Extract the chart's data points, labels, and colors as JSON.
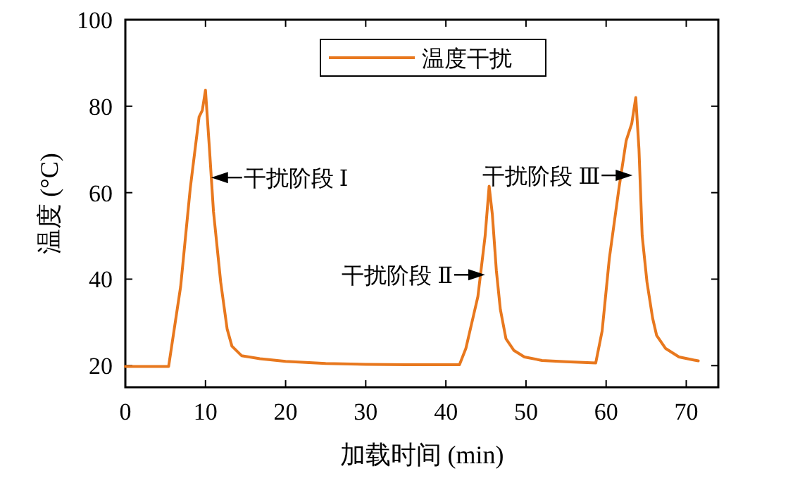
{
  "chart_data": {
    "type": "line",
    "xlabel": "加载时间 (min)",
    "ylabel": "温度 (°C)",
    "xlim": [
      0,
      74
    ],
    "ylim": [
      15,
      100
    ],
    "xticks": [
      0,
      10,
      20,
      30,
      40,
      50,
      60,
      70
    ],
    "yticks": [
      20,
      40,
      60,
      80,
      100
    ],
    "grid": false,
    "legend": "top",
    "marker": "none",
    "line_style": "solid",
    "x": [
      0,
      5.4,
      6.9,
      8.1,
      9.2,
      9.6,
      10.0,
      10.5,
      11.0,
      11.9,
      12.7,
      13.3,
      14.5,
      16.8,
      20,
      25,
      30,
      35,
      41.7,
      42.5,
      43.5,
      44.0,
      44.9,
      45.4,
      45.8,
      46.3,
      46.8,
      47.5,
      48.5,
      49.8,
      52,
      55,
      58.7,
      59.5,
      60.4,
      61.6,
      62.5,
      63.2,
      63.7,
      64.1,
      64.5,
      65.1,
      65.8,
      66.3,
      67.4,
      69.1,
      70.9,
      71.5
    ],
    "series": [
      {
        "name": "温度干扰",
        "color": "#e8781e",
        "values": [
          19.8,
          19.8,
          38.3,
          61,
          77.5,
          79,
          83.7,
          70,
          55.6,
          39.3,
          28.5,
          24.5,
          22.3,
          21.6,
          21,
          20.5,
          20.3,
          20.2,
          20.2,
          24,
          32,
          36,
          50,
          61.5,
          55,
          42,
          33,
          26.2,
          23.5,
          22,
          21.2,
          20.9,
          20.6,
          28,
          44.8,
          61,
          72,
          76,
          82,
          70,
          50,
          39.3,
          31,
          27,
          24,
          22,
          21.3,
          21.1
        ]
      }
    ],
    "annotations": [
      {
        "text": "干扰阶段 Ⅰ",
        "x": 10.7,
        "y": 63.5
      },
      {
        "text": "干扰阶段 Ⅱ",
        "x": 44.9,
        "y": 41
      },
      {
        "text": "干扰阶段 Ⅲ",
        "x": 63.3,
        "y": 64
      }
    ]
  }
}
